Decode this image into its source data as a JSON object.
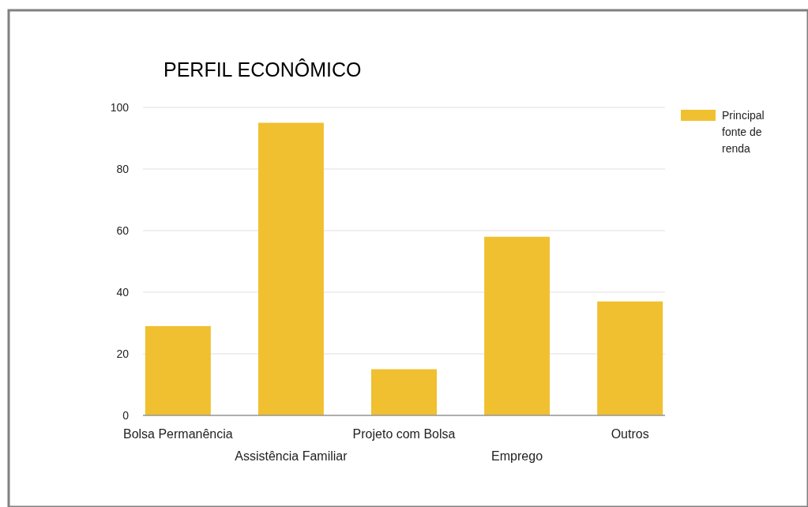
{
  "chart_data": {
    "type": "bar",
    "title": "PERFIL ECONÔMICO",
    "categories": [
      "Bolsa Permanência",
      "Assistência Familiar",
      "Projeto com Bolsa",
      "Emprego",
      "Outros"
    ],
    "series": [
      {
        "name": "Principal fonte de renda",
        "color": "#f0c030",
        "values": [
          29,
          95,
          15,
          58,
          37
        ]
      }
    ],
    "ylim": [
      0,
      100
    ],
    "yticks": [
      0,
      20,
      40,
      60,
      80,
      100
    ],
    "grid": "y",
    "legend": "right"
  }
}
